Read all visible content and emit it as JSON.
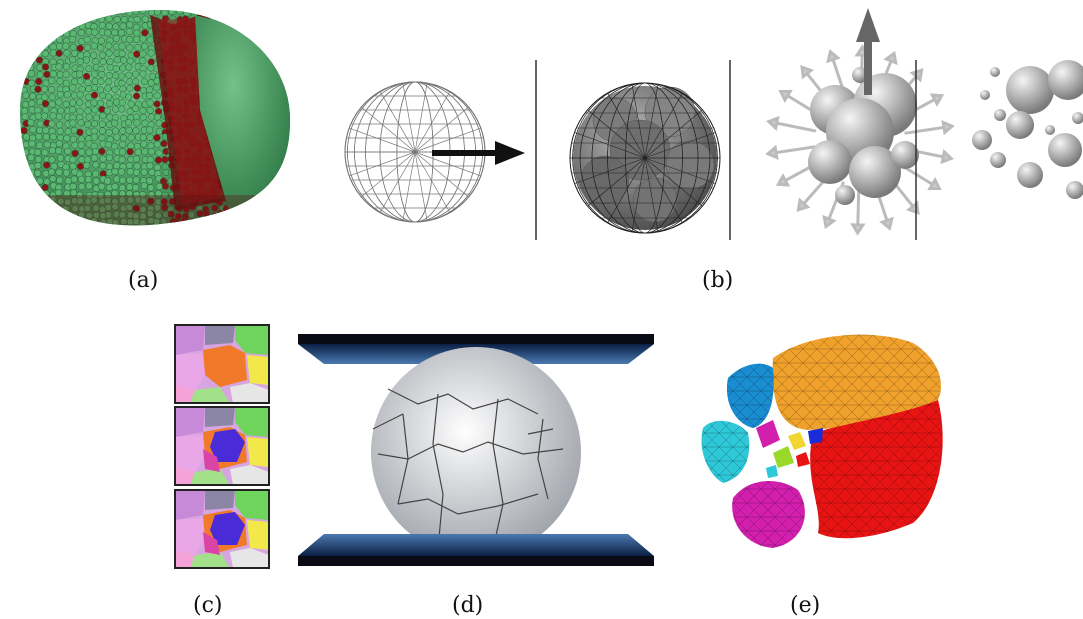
{
  "figure": {
    "panels": [
      {
        "id": "a",
        "caption": "(a)"
      },
      {
        "id": "b",
        "caption": "(b)"
      },
      {
        "id": "c",
        "caption": "(c)"
      },
      {
        "id": "d",
        "caption": "(d)"
      },
      {
        "id": "e",
        "caption": "(e)"
      }
    ],
    "colors": {
      "particle_green": "#4fa866",
      "particle_red": "#7a1212",
      "sphere_gray": "#8c8c8c",
      "plate_blue": "#1d3f78",
      "fragment_orange": "#f0a12b",
      "fragment_red": "#e81414",
      "fragment_magenta": "#d21fae",
      "fragment_cyan": "#2fc8d8",
      "fragment_blue": "#1a8cd0"
    }
  }
}
